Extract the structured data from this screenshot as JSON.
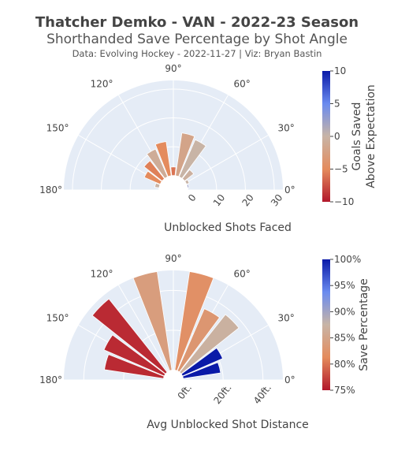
{
  "titles": {
    "main": "Thatcher Demko  -  VAN  - 2022-23 Season",
    "sub": "Shorthanded Save Percentage by Shot Angle",
    "credit": "Data: Evolving Hockey - 2022-11-27  | Viz: Bryan Bastin"
  },
  "colors": {
    "polar_bg": "#e5ecf6",
    "grid": "#ffffff",
    "text": "#444444"
  },
  "chart_data": [
    {
      "type": "bar",
      "subtype": "polar-bar",
      "angular_ticks": [
        "180°",
        "150°",
        "120°",
        "90°",
        "60°",
        "30°",
        "0°"
      ],
      "angular_tick_values": [
        180,
        150,
        120,
        90,
        60,
        30,
        0
      ],
      "radial_ticks": [
        "0",
        "10",
        "20",
        "30"
      ],
      "radial_tick_values": [
        0,
        10,
        20,
        30
      ],
      "rlim": [
        -5,
        33
      ],
      "xlabel": "Unblocked Shots Faced",
      "bars": [
        {
          "angle": 165,
          "value": 1.5,
          "gsax": 0.0
        },
        {
          "angle": 150,
          "value": 6,
          "gsax": -5.0
        },
        {
          "angle": 135,
          "value": 8,
          "gsax": -5.5
        },
        {
          "angle": 120,
          "value": 10.5,
          "gsax": -1.0
        },
        {
          "angle": 105,
          "value": 12,
          "gsax": -5.0
        },
        {
          "angle": 90,
          "value": 3,
          "gsax": -6.0
        },
        {
          "angle": 75,
          "value": 15,
          "gsax": -2.0
        },
        {
          "angle": 60,
          "value": 14,
          "gsax": 0.0
        },
        {
          "angle": 45,
          "value": 4,
          "gsax": -0.5
        },
        {
          "angle": 30,
          "value": 1,
          "gsax": 0.0
        },
        {
          "angle": 15,
          "value": 0.5,
          "gsax": 2.5
        }
      ],
      "colorbar": {
        "title": "Goals Saved Above Expectation",
        "ticks": [
          "10",
          "5",
          "0",
          "−5",
          "−10"
        ],
        "tick_values": [
          10,
          5,
          0,
          -5,
          -10
        ],
        "range": [
          -10,
          10
        ]
      }
    },
    {
      "type": "bar",
      "subtype": "polar-bar",
      "angular_ticks": [
        "180°",
        "150°",
        "120°",
        "90°",
        "60°",
        "30°",
        "0°"
      ],
      "angular_tick_values": [
        180,
        150,
        120,
        90,
        60,
        30,
        0
      ],
      "radial_ticks": [
        "0ft.",
        "20ft.",
        "40ft."
      ],
      "radial_tick_values": [
        0,
        20,
        40
      ],
      "rlim": [
        -5,
        50
      ],
      "xlabel": "Avg Unblocked Shot Distance",
      "bars": [
        {
          "angle": 165,
          "value": 30,
          "sv": 76
        },
        {
          "angle": 150,
          "value": 33,
          "sv": 76
        },
        {
          "angle": 135,
          "value": 47,
          "sv": 76
        },
        {
          "angle": 105,
          "value": 50,
          "sv": 84
        },
        {
          "angle": 75,
          "value": 50,
          "sv": 82
        },
        {
          "angle": 60,
          "value": 34,
          "sv": 83
        },
        {
          "angle": 45,
          "value": 37,
          "sv": 87
        },
        {
          "angle": 30,
          "value": 22,
          "sv": 100
        },
        {
          "angle": 15,
          "value": 19,
          "sv": 100
        }
      ],
      "colorbar": {
        "title": "Save Percentage",
        "ticks": [
          "100%",
          "95%",
          "90%",
          "85%",
          "80%",
          "75%"
        ],
        "tick_values": [
          100,
          95,
          90,
          85,
          80,
          75
        ],
        "range": [
          75,
          100
        ]
      }
    }
  ]
}
